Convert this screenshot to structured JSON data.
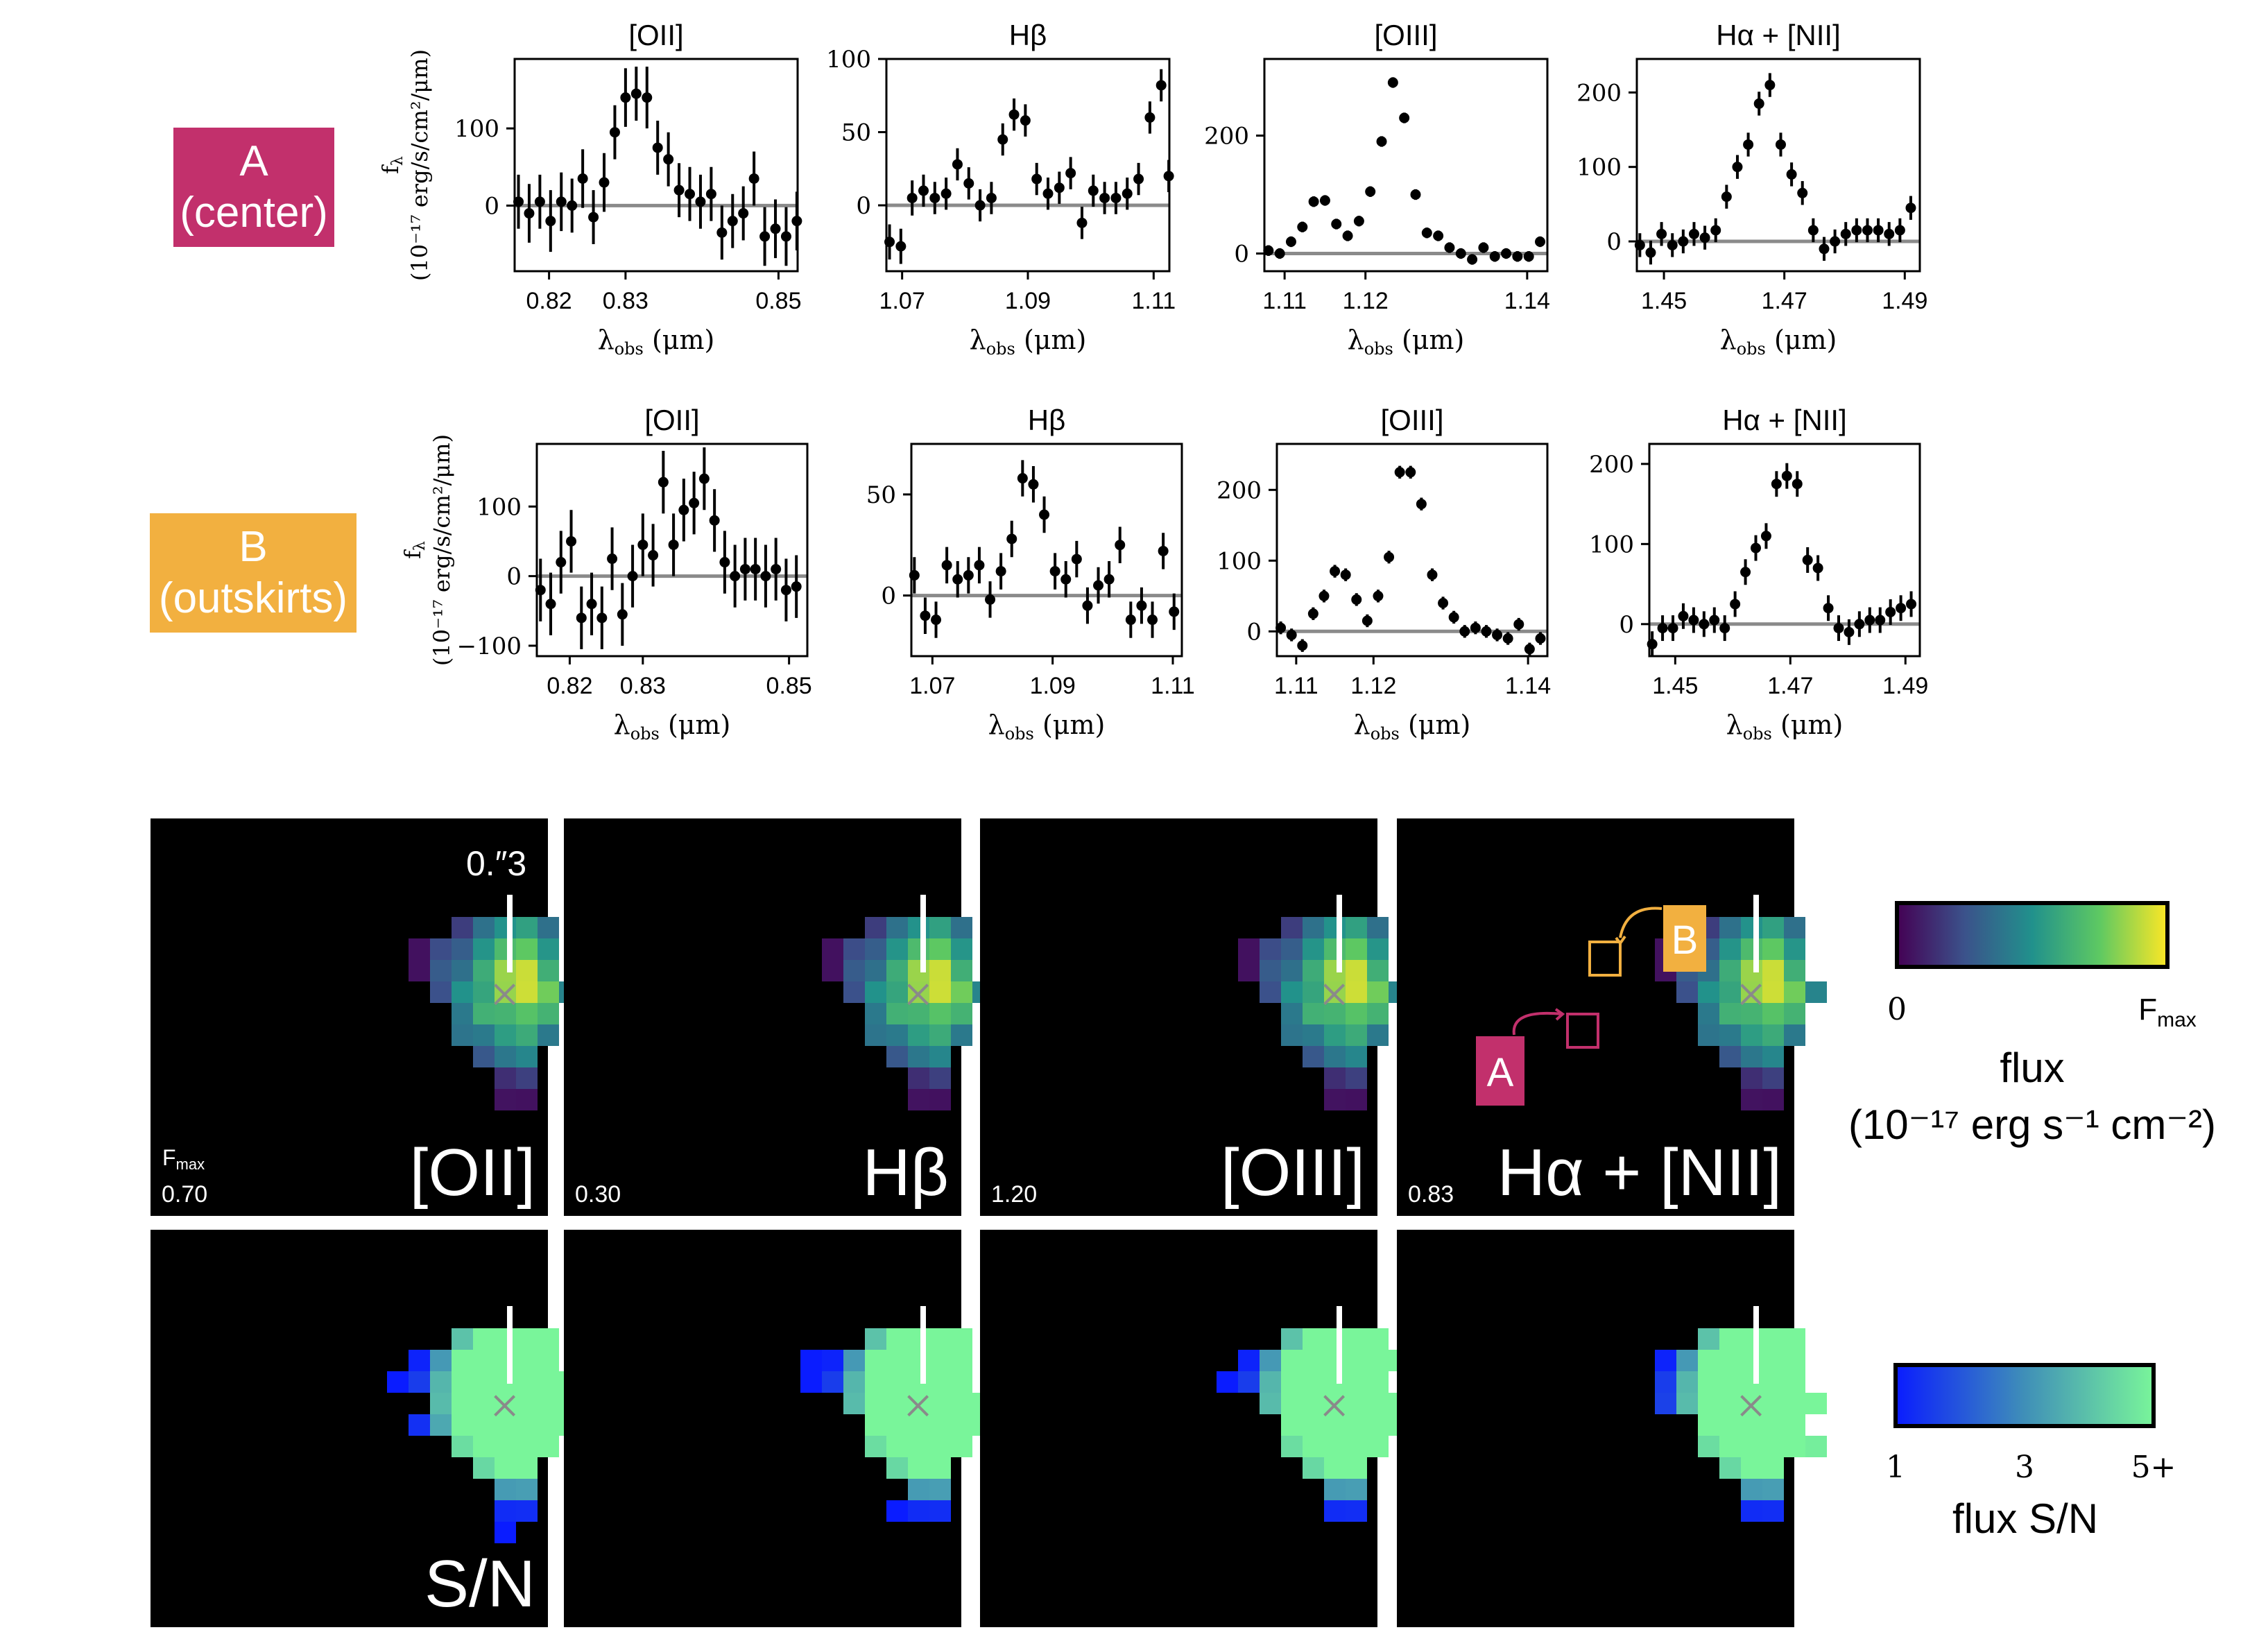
{
  "labels": {
    "region_a": {
      "line1": "A",
      "line2": "(center)",
      "color": "#c2306c"
    },
    "region_b": {
      "line1": "B",
      "line2": "(outskirts)",
      "color": "#f2b040"
    }
  },
  "spectra": {
    "ylabel_line1": "f",
    "ylabel_sub": "λ",
    "ylabel_line2": "(10⁻¹⁷ erg/s/cm²/μm)",
    "xlabel": "λ",
    "xlabel_sub": "obs",
    "xlabel_unit": "(μm)"
  },
  "chart_data": [
    {
      "type": "scatter",
      "row": "A (center)",
      "title": "[OII]",
      "xlim": [
        0.8155,
        0.8525
      ],
      "ylim": [
        -85,
        190
      ],
      "xticks": [
        0.82,
        0.83,
        0.85
      ],
      "yticks": [
        0,
        100
      ],
      "x": [
        0.816,
        0.8174,
        0.8188,
        0.8202,
        0.8216,
        0.823,
        0.8244,
        0.8258,
        0.8272,
        0.8286,
        0.83,
        0.8314,
        0.8328,
        0.8342,
        0.8356,
        0.837,
        0.8384,
        0.8398,
        0.8412,
        0.8426,
        0.844,
        0.8454,
        0.8468,
        0.8482,
        0.8496,
        0.851,
        0.8524
      ],
      "y": [
        5,
        -10,
        5,
        -20,
        5,
        0,
        35,
        -15,
        30,
        95,
        140,
        145,
        140,
        75,
        60,
        20,
        15,
        5,
        15,
        -35,
        -20,
        -10,
        35,
        -40,
        -30,
        -40,
        -20
      ],
      "yerr": [
        35,
        38,
        35,
        40,
        38,
        35,
        38,
        35,
        38,
        35,
        38,
        35,
        40,
        35,
        35,
        35,
        35,
        35,
        35,
        35,
        35,
        35,
        35,
        38,
        38,
        38,
        38
      ]
    },
    {
      "type": "scatter",
      "row": "A (center)",
      "title": "Hβ",
      "xlim": [
        1.0675,
        1.1125
      ],
      "ylim": [
        -45,
        100
      ],
      "xticks": [
        1.07,
        1.09,
        1.11
      ],
      "yticks": [
        0,
        50,
        100
      ],
      "x": [
        1.068,
        1.0698,
        1.0716,
        1.0734,
        1.0752,
        1.077,
        1.0788,
        1.0806,
        1.0824,
        1.0842,
        1.086,
        1.0878,
        1.0896,
        1.0914,
        1.0932,
        1.095,
        1.0968,
        1.0986,
        1.1004,
        1.1022,
        1.104,
        1.1058,
        1.1076,
        1.1094,
        1.1112,
        1.1124
      ],
      "y": [
        -25,
        -28,
        5,
        10,
        5,
        8,
        28,
        15,
        0,
        5,
        45,
        62,
        58,
        18,
        8,
        12,
        22,
        -12,
        10,
        5,
        5,
        8,
        18,
        60,
        82,
        20
      ],
      "yerr": [
        12,
        12,
        12,
        11,
        11,
        11,
        11,
        11,
        11,
        11,
        11,
        11,
        11,
        11,
        11,
        11,
        11,
        11,
        11,
        11,
        11,
        11,
        11,
        11,
        11,
        11
      ]
    },
    {
      "type": "scatter",
      "row": "A (center)",
      "title": "[OIII]",
      "xlim": [
        1.1075,
        1.1425
      ],
      "ylim": [
        -30,
        330
      ],
      "xticks": [
        1.11,
        1.12,
        1.14
      ],
      "yticks": [
        0,
        200
      ],
      "x": [
        1.108,
        1.1094,
        1.1108,
        1.1122,
        1.1136,
        1.115,
        1.1164,
        1.1178,
        1.1192,
        1.1206,
        1.122,
        1.1234,
        1.1248,
        1.1262,
        1.1276,
        1.129,
        1.1304,
        1.1318,
        1.1332,
        1.1346,
        1.136,
        1.1374,
        1.1388,
        1.1402,
        1.1416
      ],
      "y": [
        5,
        0,
        20,
        45,
        88,
        90,
        50,
        30,
        55,
        105,
        190,
        290,
        230,
        100,
        35,
        30,
        10,
        0,
        -10,
        10,
        -5,
        0,
        -5,
        -5,
        20
      ],
      "yerr": [
        9,
        9,
        9,
        9,
        9,
        9,
        9,
        9,
        9,
        9,
        9,
        9,
        9,
        9,
        9,
        9,
        9,
        9,
        9,
        9,
        9,
        9,
        9,
        9,
        9
      ]
    },
    {
      "type": "scatter",
      "row": "A (center)",
      "title": "Hα + [NII]",
      "xlim": [
        1.4455,
        1.4925
      ],
      "ylim": [
        -40,
        245
      ],
      "xticks": [
        1.45,
        1.47,
        1.49
      ],
      "yticks": [
        0,
        100,
        200
      ],
      "x": [
        1.446,
        1.4478,
        1.4496,
        1.4514,
        1.4532,
        1.455,
        1.4568,
        1.4586,
        1.4604,
        1.4622,
        1.464,
        1.4658,
        1.4676,
        1.4694,
        1.4712,
        1.473,
        1.4748,
        1.4766,
        1.4784,
        1.4802,
        1.482,
        1.4838,
        1.4856,
        1.4874,
        1.4892,
        1.491,
        1.4928
      ],
      "y": [
        -5,
        -15,
        10,
        -5,
        0,
        10,
        5,
        15,
        60,
        100,
        130,
        185,
        210,
        130,
        90,
        65,
        15,
        -10,
        0,
        10,
        15,
        15,
        15,
        10,
        15,
        45,
        25
      ],
      "yerr": [
        16,
        16,
        16,
        16,
        16,
        16,
        16,
        16,
        16,
        16,
        16,
        16,
        16,
        16,
        16,
        16,
        16,
        16,
        16,
        16,
        16,
        16,
        16,
        16,
        16,
        16,
        16
      ]
    },
    {
      "type": "scatter",
      "row": "B (outskirts)",
      "title": "[OII]",
      "xlim": [
        0.8155,
        0.8525
      ],
      "ylim": [
        -115,
        190
      ],
      "xticks": [
        0.82,
        0.83,
        0.85
      ],
      "yticks": [
        -100,
        0,
        100
      ],
      "x": [
        0.816,
        0.8174,
        0.8188,
        0.8202,
        0.8216,
        0.823,
        0.8244,
        0.8258,
        0.8272,
        0.8286,
        0.83,
        0.8314,
        0.8328,
        0.8342,
        0.8356,
        0.837,
        0.8384,
        0.8398,
        0.8412,
        0.8426,
        0.844,
        0.8454,
        0.8468,
        0.8482,
        0.8496,
        0.851
      ],
      "y": [
        -20,
        -40,
        20,
        50,
        -60,
        -40,
        -60,
        25,
        -55,
        0,
        45,
        30,
        135,
        45,
        95,
        105,
        140,
        80,
        20,
        0,
        10,
        10,
        0,
        10,
        -20,
        -15
      ],
      "yerr": [
        45,
        45,
        45,
        45,
        45,
        45,
        45,
        45,
        45,
        45,
        45,
        45,
        45,
        45,
        45,
        45,
        45,
        45,
        45,
        45,
        45,
        45,
        45,
        45,
        45,
        45
      ]
    },
    {
      "type": "scatter",
      "row": "B (outskirts)",
      "title": "Hβ",
      "xlim": [
        1.0665,
        1.1115
      ],
      "ylim": [
        -30,
        75
      ],
      "xticks": [
        1.07,
        1.09,
        1.11
      ],
      "yticks": [
        0,
        50
      ],
      "x": [
        1.067,
        1.0688,
        1.0706,
        1.0724,
        1.0742,
        1.076,
        1.0778,
        1.0796,
        1.0814,
        1.0832,
        1.085,
        1.0868,
        1.0886,
        1.0904,
        1.0922,
        1.094,
        1.0958,
        1.0976,
        1.0994,
        1.1012,
        1.103,
        1.1048,
        1.1066,
        1.1084,
        1.1102
      ],
      "y": [
        10,
        -10,
        -12,
        15,
        8,
        10,
        15,
        -2,
        12,
        28,
        58,
        55,
        40,
        12,
        8,
        18,
        -5,
        5,
        8,
        25,
        -12,
        -5,
        -12,
        22,
        -8
      ],
      "yerr": [
        9,
        9,
        9,
        9,
        9,
        9,
        9,
        9,
        9,
        9,
        9,
        9,
        9,
        9,
        9,
        9,
        9,
        9,
        9,
        9,
        9,
        9,
        9,
        9,
        9
      ]
    },
    {
      "type": "scatter",
      "row": "B (outskirts)",
      "title": "[OIII]",
      "xlim": [
        1.1075,
        1.1425
      ],
      "ylim": [
        -35,
        265
      ],
      "xticks": [
        1.11,
        1.12,
        1.14
      ],
      "yticks": [
        0,
        100,
        200
      ],
      "x": [
        1.108,
        1.1094,
        1.1108,
        1.1122,
        1.1136,
        1.115,
        1.1164,
        1.1178,
        1.1192,
        1.1206,
        1.122,
        1.1234,
        1.1248,
        1.1262,
        1.1276,
        1.129,
        1.1304,
        1.1318,
        1.1332,
        1.1346,
        1.136,
        1.1374,
        1.1388,
        1.1402,
        1.1416
      ],
      "y": [
        5,
        -5,
        -20,
        25,
        50,
        85,
        80,
        45,
        15,
        50,
        105,
        225,
        225,
        180,
        80,
        40,
        20,
        0,
        5,
        0,
        -5,
        -10,
        10,
        -25,
        -10
      ],
      "yerr": [
        9,
        9,
        9,
        9,
        9,
        9,
        9,
        9,
        9,
        9,
        9,
        9,
        9,
        9,
        9,
        9,
        9,
        9,
        9,
        9,
        9,
        9,
        9,
        9,
        9
      ]
    },
    {
      "type": "scatter",
      "row": "B (outskirts)",
      "title": "Hα + [NII]",
      "xlim": [
        1.4455,
        1.4925
      ],
      "ylim": [
        -40,
        225
      ],
      "xticks": [
        1.45,
        1.47,
        1.49
      ],
      "yticks": [
        0,
        100,
        200
      ],
      "x": [
        1.446,
        1.4478,
        1.4496,
        1.4514,
        1.4532,
        1.455,
        1.4568,
        1.4586,
        1.4604,
        1.4622,
        1.464,
        1.4658,
        1.4676,
        1.4694,
        1.4712,
        1.473,
        1.4748,
        1.4766,
        1.4784,
        1.4802,
        1.482,
        1.4838,
        1.4856,
        1.4874,
        1.4892,
        1.491
      ],
      "y": [
        -25,
        -5,
        -5,
        10,
        5,
        0,
        5,
        -5,
        25,
        65,
        95,
        110,
        175,
        185,
        175,
        80,
        70,
        20,
        -5,
        -10,
        0,
        5,
        5,
        15,
        20,
        25
      ],
      "yerr": [
        16,
        16,
        16,
        16,
        16,
        16,
        16,
        16,
        16,
        16,
        16,
        16,
        16,
        16,
        16,
        16,
        16,
        16,
        16,
        16,
        16,
        16,
        16,
        16,
        16,
        16
      ]
    }
  ],
  "maps": {
    "scale_label": "0.″3",
    "fmax_word": "F",
    "fmax_sub": "max",
    "flux_panels": [
      {
        "label": "[OII]",
        "fmax": "0.70"
      },
      {
        "label": "Hβ",
        "fmax": "0.30"
      },
      {
        "label": "[OIII]",
        "fmax": "1.20"
      },
      {
        "label": "Hα + [NII]",
        "fmax": "0.83"
      }
    ],
    "sn_label": "S/N",
    "marker_a": "A",
    "marker_b": "B"
  },
  "colorbars": {
    "flux": {
      "tick_left": "0",
      "tick_right_word": "F",
      "tick_right_sub": "max",
      "title1": "flux",
      "title2": "(10⁻¹⁷ erg s⁻¹ cm⁻²)"
    },
    "sn": {
      "ticks": [
        "1",
        "3",
        "5+"
      ],
      "title": "flux S/N"
    }
  },
  "colors": {
    "viridis_dark": "#440154",
    "viridis_mid": "#21918c",
    "viridis_bright": "#fde725",
    "sn_low": "#0a1cff",
    "sn_high": "#79f59a"
  }
}
